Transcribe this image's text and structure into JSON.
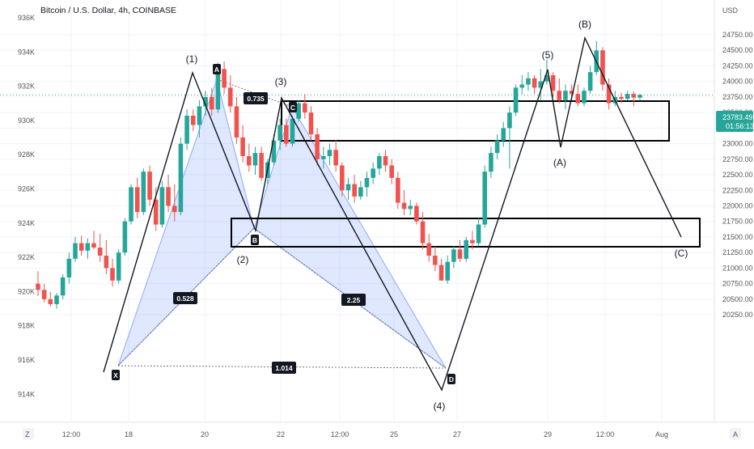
{
  "header": {
    "title": "Bitcoin / U.S. Dollar, 4h, COINBASE",
    "currency": "USD"
  },
  "price": {
    "last": "23783.49",
    "countdown": "01:56:13",
    "last_color": "#26a69a"
  },
  "footer": {
    "left_button": "Z",
    "right_button": "A"
  },
  "colors": {
    "up": "#26a69a",
    "down": "#ef5350",
    "harmonic_fill": "#2962ff"
  },
  "chart_data": {
    "type": "candlestick",
    "right_axis": {
      "label": "USD",
      "ticks": [
        24750,
        24500,
        24250,
        24000,
        23750,
        23500,
        23250,
        23000,
        22750,
        22500,
        22250,
        22000,
        21750,
        21500,
        21250,
        21000,
        20750,
        20500,
        20250
      ],
      "tick_labels": [
        "24750.00",
        "24500.00",
        "24250.00",
        "24000.00",
        "23750.00",
        "23500.00",
        "23250.00",
        "23000.00",
        "22750.00",
        "22500.00",
        "22250.00",
        "22000.00",
        "21750.00",
        "21500.00",
        "21250.00",
        "21000.00",
        "20750.00",
        "20500.00",
        "20250.00"
      ],
      "range": [
        20100,
        25050
      ]
    },
    "left_axis": {
      "tick_labels": [
        "936K",
        "934K",
        "932K",
        "930K",
        "928K",
        "926K",
        "924K",
        "922K",
        "920K",
        "918K",
        "916K",
        "914K"
      ]
    },
    "x_axis": {
      "tick_labels": [
        "12:00",
        "18",
        "20",
        "22",
        "12:00",
        "25",
        "27",
        "29",
        "12:00",
        "Aug"
      ]
    },
    "candles": [
      [
        20750,
        20950,
        20550,
        20650
      ],
      [
        20650,
        20750,
        20450,
        20500
      ],
      [
        20500,
        20620,
        20380,
        20420
      ],
      [
        20420,
        20600,
        20350,
        20560
      ],
      [
        20560,
        20900,
        20500,
        20850
      ],
      [
        20850,
        21250,
        20750,
        21150
      ],
      [
        21150,
        21500,
        21100,
        21400
      ],
      [
        21400,
        21520,
        21200,
        21280
      ],
      [
        21280,
        21480,
        21150,
        21400
      ],
      [
        21400,
        21600,
        21300,
        21330
      ],
      [
        21330,
        21550,
        21100,
        21200
      ],
      [
        21200,
        21450,
        20900,
        21000
      ],
      [
        21000,
        21150,
        20700,
        20800
      ],
      [
        20800,
        21300,
        20750,
        21250
      ],
      [
        21250,
        21800,
        21200,
        21750
      ],
      [
        21750,
        22350,
        21700,
        22300
      ],
      [
        22300,
        22450,
        21800,
        21900
      ],
      [
        21900,
        22600,
        21850,
        22550
      ],
      [
        22550,
        22650,
        22000,
        22100
      ],
      [
        22100,
        22300,
        21600,
        21700
      ],
      [
        21700,
        22400,
        21650,
        22300
      ],
      [
        22300,
        22500,
        21900,
        22000
      ],
      [
        22000,
        22350,
        21750,
        21900
      ],
      [
        21900,
        23100,
        21850,
        23000
      ],
      [
        23000,
        23550,
        22900,
        23450
      ],
      [
        23450,
        23550,
        23200,
        23300
      ],
      [
        23300,
        23700,
        23100,
        23600
      ],
      [
        23600,
        23850,
        23450,
        23750
      ],
      [
        23750,
        23900,
        23450,
        23550
      ],
      [
        23550,
        24300,
        23500,
        24200
      ],
      [
        24200,
        24320,
        23800,
        23900
      ],
      [
        23900,
        24100,
        23500,
        23600
      ],
      [
        23600,
        23750,
        23000,
        23100
      ],
      [
        23100,
        23300,
        22700,
        22800
      ],
      [
        22800,
        23000,
        22550,
        22650
      ],
      [
        22650,
        22950,
        22500,
        22850
      ],
      [
        22850,
        22950,
        22400,
        22450
      ],
      [
        22450,
        22750,
        22350,
        22700
      ],
      [
        22700,
        23150,
        22650,
        23050
      ],
      [
        23050,
        23400,
        22900,
        23300
      ],
      [
        23300,
        23400,
        22950,
        23000
      ],
      [
        23000,
        23450,
        22950,
        23400
      ],
      [
        23400,
        23700,
        23350,
        23650
      ],
      [
        23650,
        23800,
        23400,
        23500
      ],
      [
        23500,
        23600,
        23050,
        23150
      ],
      [
        23150,
        23250,
        22650,
        22750
      ],
      [
        22750,
        22950,
        22600,
        22800
      ],
      [
        22800,
        23000,
        22650,
        22900
      ],
      [
        22900,
        23050,
        22550,
        22650
      ],
      [
        22650,
        22700,
        22150,
        22250
      ],
      [
        22250,
        22450,
        22100,
        22350
      ],
      [
        22350,
        22500,
        22050,
        22150
      ],
      [
        22150,
        22400,
        22100,
        22300
      ],
      [
        22300,
        22550,
        22150,
        22450
      ],
      [
        22450,
        22700,
        22350,
        22600
      ],
      [
        22600,
        22850,
        22500,
        22800
      ],
      [
        22800,
        22900,
        22550,
        22650
      ],
      [
        22650,
        22750,
        22350,
        22450
      ],
      [
        22450,
        22550,
        21950,
        22050
      ],
      [
        22050,
        22250,
        21850,
        21950
      ],
      [
        21950,
        22100,
        21850,
        22000
      ],
      [
        22000,
        22050,
        21700,
        21750
      ],
      [
        21750,
        21900,
        21300,
        21400
      ],
      [
        21400,
        21550,
        21100,
        21200
      ],
      [
        21200,
        21350,
        20950,
        21050
      ],
      [
        21050,
        21150,
        20800,
        20800
      ],
      [
        20800,
        21200,
        20750,
        21100
      ],
      [
        21100,
        21350,
        21000,
        21300
      ],
      [
        21300,
        21450,
        21100,
        21150
      ],
      [
        21150,
        21500,
        21100,
        21450
      ],
      [
        21450,
        21600,
        21300,
        21400
      ],
      [
        21400,
        21800,
        21350,
        21700
      ],
      [
        21700,
        22650,
        21650,
        22550
      ],
      [
        22550,
        22950,
        22450,
        22850
      ],
      [
        22850,
        23150,
        22750,
        23050
      ],
      [
        23050,
        23350,
        22950,
        23250
      ],
      [
        23250,
        23600,
        22600,
        23500
      ],
      [
        23500,
        23950,
        23450,
        23900
      ],
      [
        23900,
        24100,
        23800,
        23950
      ],
      [
        23950,
        24150,
        23850,
        24050
      ],
      [
        24050,
        24100,
        23800,
        23900
      ],
      [
        23900,
        24200,
        23700,
        24000
      ],
      [
        24000,
        24350,
        23950,
        24100
      ],
      [
        24100,
        24150,
        23750,
        23850
      ],
      [
        23850,
        24050,
        23650,
        23700
      ],
      [
        23700,
        23950,
        23550,
        23850
      ],
      [
        23850,
        23950,
        23700,
        23800
      ],
      [
        23800,
        23950,
        23600,
        23650
      ],
      [
        23650,
        23900,
        23600,
        23850
      ],
      [
        23850,
        24250,
        23800,
        24150
      ],
      [
        24150,
        24650,
        24100,
        24500
      ],
      [
        24500,
        24550,
        23850,
        23950
      ],
      [
        23950,
        24050,
        23550,
        23650
      ],
      [
        23650,
        23850,
        23600,
        23750
      ],
      [
        23750,
        23820,
        23650,
        23720
      ],
      [
        23720,
        23850,
        23700,
        23800
      ],
      [
        23800,
        23840,
        23600,
        23740
      ],
      [
        23740,
        23800,
        23700,
        23783.49
      ]
    ],
    "wave_labels": [
      "(1)",
      "(2)",
      "(3)",
      "(4)",
      "(5)",
      "(A)",
      "(B)",
      "(C)"
    ],
    "pattern_points": [
      "X",
      "A",
      "B",
      "C",
      "D"
    ],
    "ratios": [
      "0.528",
      "0.735",
      "2.25",
      "1.014"
    ]
  }
}
